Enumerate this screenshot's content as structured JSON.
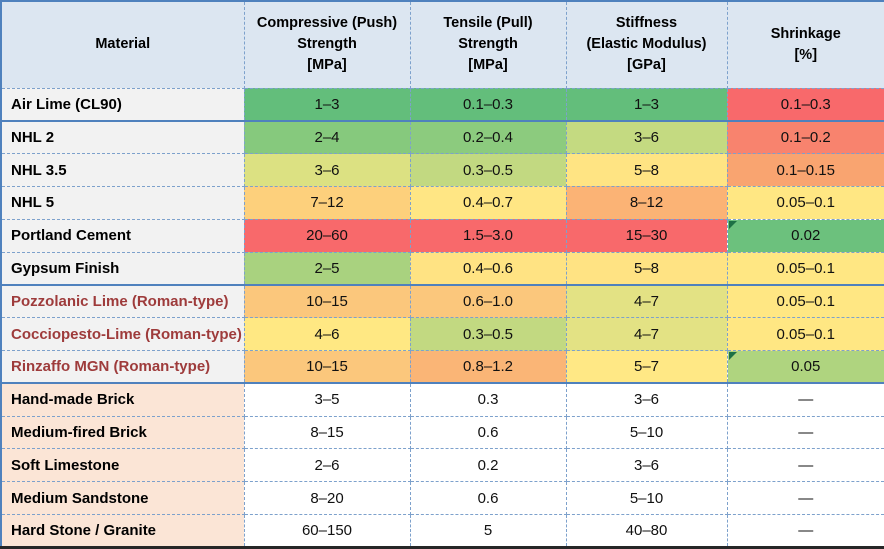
{
  "colors": {
    "outer_border": "#4F81BD",
    "dashed_grid": "#7DA1CC",
    "group_separator": "#4F81BD",
    "bottom_border": "#262626",
    "header_bg": "#DCE6F1",
    "mortar_material_bg": "#F2F2F2",
    "masonry_material_bg": "#FBE5D6",
    "roman_label_text": "#9E3B3B",
    "flag_triangle": "#1E7145",
    "scale_green": "#63BE7B",
    "scale_yellow": "#FFE783",
    "scale_red": "#F8696B"
  },
  "chart_data": {
    "type": "table",
    "title": "",
    "legend_position": "none",
    "layout_hint": "heatmap-colored table; green=good, yellow=middle, red=poor; dashed blue grid with solid blue group separators",
    "columns": [
      "Material",
      "Compressive (Push)\nStrength\n[MPa]",
      "Tensile (Pull)\nStrength\n[MPa]",
      "Stiffness\n(Elastic Modulus)\n[GPa]",
      "Shrinkage\n[%]"
    ],
    "rows": [
      {
        "material": "Air Lime (CL90)",
        "material_style": "default",
        "material_bg": "#F2F2F2",
        "separator_below": true,
        "cells": [
          {
            "text": "1–3",
            "bg": "#63BE7B"
          },
          {
            "text": "0.1–0.3",
            "bg": "#63BE7B"
          },
          {
            "text": "1–3",
            "bg": "#63BE7B"
          },
          {
            "text": "0.1–0.3",
            "bg": "#F8696B"
          }
        ]
      },
      {
        "material": "NHL 2",
        "material_style": "default",
        "material_bg": "#F2F2F2",
        "separator_below": false,
        "cells": [
          {
            "text": "2–4",
            "bg": "#86C97D"
          },
          {
            "text": "0.2–0.4",
            "bg": "#8CCB7E"
          },
          {
            "text": "3–6",
            "bg": "#C4DA81"
          },
          {
            "text": "0.1–0.2",
            "bg": "#F8836E"
          }
        ]
      },
      {
        "material": "NHL 3.5",
        "material_style": "default",
        "material_bg": "#F2F2F2",
        "separator_below": false,
        "cells": [
          {
            "text": "3–6",
            "bg": "#DCE182"
          },
          {
            "text": "0.3–0.5",
            "bg": "#C2D981"
          },
          {
            "text": "5–8",
            "bg": "#FFE483"
          },
          {
            "text": "0.1–0.15",
            "bg": "#F9A470"
          }
        ]
      },
      {
        "material": "NHL 5",
        "material_style": "default",
        "material_bg": "#F2F2F2",
        "separator_below": false,
        "cells": [
          {
            "text": "7–12",
            "bg": "#FDD07C"
          },
          {
            "text": "0.4–0.7",
            "bg": "#FFE684"
          },
          {
            "text": "8–12",
            "bg": "#FBB375"
          },
          {
            "text": "0.05–0.1",
            "bg": "#FFE783"
          }
        ]
      },
      {
        "material": "Portland Cement",
        "material_style": "default",
        "material_bg": "#F2F2F2",
        "separator_below": false,
        "cells": [
          {
            "text": "20–60",
            "bg": "#F8696B"
          },
          {
            "text": "1.5–3.0",
            "bg": "#F8696B"
          },
          {
            "text": "15–30",
            "bg": "#F8696B"
          },
          {
            "text": "0.02",
            "bg": "#6CC17D",
            "flag": true
          }
        ]
      },
      {
        "material": "Gypsum Finish",
        "material_style": "default",
        "material_bg": "#F2F2F2",
        "separator_below": true,
        "cells": [
          {
            "text": "2–5",
            "bg": "#A9D27F"
          },
          {
            "text": "0.4–0.6",
            "bg": "#FFE383"
          },
          {
            "text": "5–8",
            "bg": "#FFE383"
          },
          {
            "text": "0.05–0.1",
            "bg": "#FFE783"
          }
        ]
      },
      {
        "material": "Pozzolanic Lime (Roman-type)",
        "material_style": "roman",
        "material_bg": "#F2F2F2",
        "separator_below": false,
        "cells": [
          {
            "text": "10–15",
            "bg": "#FBC77C"
          },
          {
            "text": "0.6–1.0",
            "bg": "#FBC77C"
          },
          {
            "text": "4–7",
            "bg": "#E3E284"
          },
          {
            "text": "0.05–0.1",
            "bg": "#FFE783"
          }
        ]
      },
      {
        "material": "Cocciopesto-Lime (Roman-type)",
        "material_style": "roman",
        "material_bg": "#F2F2F2",
        "separator_below": false,
        "cells": [
          {
            "text": "4–6",
            "bg": "#FFE883"
          },
          {
            "text": "0.3–0.5",
            "bg": "#C2D981"
          },
          {
            "text": "4–7",
            "bg": "#E3E284"
          },
          {
            "text": "0.05–0.1",
            "bg": "#FFE783"
          }
        ]
      },
      {
        "material": "Rinzaffo MGN (Roman-type)",
        "material_style": "roman",
        "material_bg": "#F2F2F2",
        "separator_below": true,
        "cells": [
          {
            "text": "10–15",
            "bg": "#FBC77C"
          },
          {
            "text": "0.8–1.2",
            "bg": "#FAB576"
          },
          {
            "text": "5–7",
            "bg": "#FFE885"
          },
          {
            "text": "0.05",
            "bg": "#AFD47F",
            "flag": true
          }
        ]
      },
      {
        "material": "Hand-made Brick",
        "material_style": "default",
        "material_bg": "#FBE5D6",
        "separator_below": false,
        "cells": [
          {
            "text": "3–5",
            "bg": "#FFFFFF"
          },
          {
            "text": "0.3",
            "bg": "#FFFFFF"
          },
          {
            "text": "3–6",
            "bg": "#FFFFFF"
          },
          {
            "text": "—",
            "bg": "#FFFFFF"
          }
        ]
      },
      {
        "material": "Medium-fired Brick",
        "material_style": "default",
        "material_bg": "#FBE5D6",
        "separator_below": false,
        "cells": [
          {
            "text": "8–15",
            "bg": "#FFFFFF"
          },
          {
            "text": "0.6",
            "bg": "#FFFFFF"
          },
          {
            "text": "5–10",
            "bg": "#FFFFFF"
          },
          {
            "text": "—",
            "bg": "#FFFFFF"
          }
        ]
      },
      {
        "material": "Soft Limestone",
        "material_style": "default",
        "material_bg": "#FBE5D6",
        "separator_below": false,
        "cells": [
          {
            "text": "2–6",
            "bg": "#FFFFFF"
          },
          {
            "text": "0.2",
            "bg": "#FFFFFF"
          },
          {
            "text": "3–6",
            "bg": "#FFFFFF"
          },
          {
            "text": "—",
            "bg": "#FFFFFF"
          }
        ]
      },
      {
        "material": "Medium Sandstone",
        "material_style": "default",
        "material_bg": "#FBE5D6",
        "separator_below": false,
        "cells": [
          {
            "text": "8–20",
            "bg": "#FFFFFF"
          },
          {
            "text": "0.6",
            "bg": "#FFFFFF"
          },
          {
            "text": "5–10",
            "bg": "#FFFFFF"
          },
          {
            "text": "—",
            "bg": "#FFFFFF"
          }
        ]
      },
      {
        "material": "Hard Stone / Granite",
        "material_style": "default",
        "material_bg": "#FBE5D6",
        "separator_below": false,
        "cells": [
          {
            "text": "60–150",
            "bg": "#FFFFFF"
          },
          {
            "text": "5",
            "bg": "#FFFFFF"
          },
          {
            "text": "40–80",
            "bg": "#FFFFFF"
          },
          {
            "text": "—",
            "bg": "#FFFFFF"
          }
        ]
      }
    ]
  }
}
